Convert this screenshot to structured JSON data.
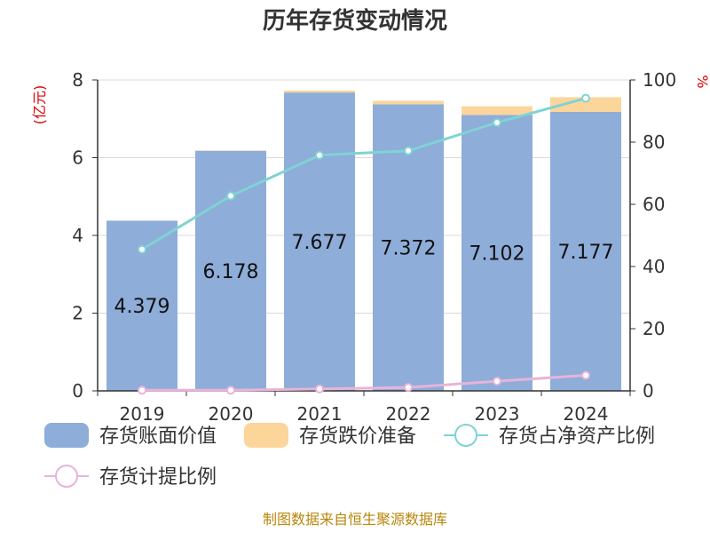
{
  "chart_data": {
    "type": "bar",
    "title": "历年存货变动情况",
    "categories": [
      "2019",
      "2020",
      "2021",
      "2022",
      "2023",
      "2024"
    ],
    "left_axis": {
      "unit": "(亿元)",
      "ylim": [
        0,
        8
      ],
      "ticks": [
        0,
        2,
        4,
        6,
        8
      ]
    },
    "right_axis": {
      "unit": "%",
      "ylim": [
        0,
        100
      ],
      "ticks": [
        0,
        20,
        40,
        60,
        80,
        100
      ]
    },
    "series": [
      {
        "name": "存货账面价值",
        "kind": "bar",
        "axis": "left",
        "color": "#8eadd9",
        "values": [
          4.379,
          6.178,
          7.677,
          7.372,
          7.102,
          7.177
        ],
        "labels": [
          "4.379",
          "6.178",
          "7.677",
          "7.372",
          "7.102",
          "7.177"
        ]
      },
      {
        "name": "存货跌价准备",
        "kind": "bar-stack",
        "axis": "left",
        "color": "#fcd59a",
        "values": [
          0.0,
          0.01,
          0.05,
          0.09,
          0.22,
          0.38
        ]
      },
      {
        "name": "存货占净资产比例",
        "kind": "line",
        "axis": "right",
        "color": "#7fd3d3",
        "values": [
          45.5,
          62.7,
          75.8,
          77.2,
          86.3,
          94.1
        ]
      },
      {
        "name": "存货计提比例",
        "kind": "line",
        "axis": "right",
        "color": "#e8b3d9",
        "values": [
          0.2,
          0.2,
          0.6,
          1.1,
          3.1,
          5.0
        ]
      }
    ],
    "grid": true,
    "legend": "bottom"
  },
  "source_text": "制图数据来自恒生聚源数据库"
}
